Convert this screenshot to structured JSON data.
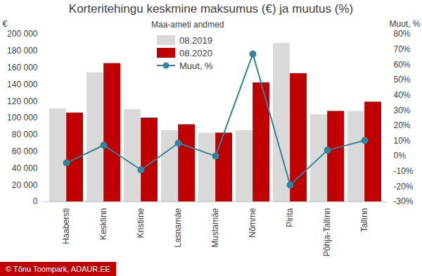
{
  "chart_data": {
    "type": "bar",
    "title": "Korteritehingu keskmine maksumus (€) ja muutus (%)",
    "subtitle": "Maa-ameti andmed",
    "caption": "© Tõnu Toompark, ADAUR.EE",
    "y_label": "€",
    "y2_label": "Muut, %",
    "categories": [
      "Haabersti",
      "Kesklinn",
      "Kristiine",
      "Lasnamäe",
      "Mustamäe",
      "Nõmme",
      "Pirita",
      "Põhja-Tallinn",
      "Tallinn"
    ],
    "series": [
      {
        "name": "08.2019",
        "color": "#d9d9d9",
        "values": [
          111000,
          154000,
          110000,
          85000,
          82000,
          85000,
          189000,
          104000,
          108000
        ]
      },
      {
        "name": "08.2020",
        "color": "#c00000",
        "values": [
          106000,
          165000,
          100000,
          92000,
          82000,
          142000,
          153000,
          108000,
          119000
        ]
      },
      {
        "name": "Muut, %",
        "type": "line",
        "marker": "circle",
        "axis": "y2",
        "color": "#31849b",
        "values": [
          -4.5,
          7.1,
          -9.1,
          8.5,
          0,
          67,
          -19,
          3.8,
          10.2
        ]
      }
    ],
    "ylim": [
      0,
      200000
    ],
    "yticks": [
      {
        "value": 0,
        "label": "0"
      },
      {
        "value": 20000,
        "label": "20 000"
      },
      {
        "value": 40000,
        "label": "40 000"
      },
      {
        "value": 60000,
        "label": "60 000"
      },
      {
        "value": 80000,
        "label": "80 000"
      },
      {
        "value": 100000,
        "label": "100 000"
      },
      {
        "value": 120000,
        "label": "120 000"
      },
      {
        "value": 140000,
        "label": "140 000"
      },
      {
        "value": 160000,
        "label": "160 000"
      },
      {
        "value": 180000,
        "label": "180 000"
      },
      {
        "value": 200000,
        "label": "200 000"
      }
    ],
    "y2lim": [
      -30,
      80
    ],
    "y2ticks": [
      {
        "value": -30,
        "label": "-30%"
      },
      {
        "value": -20,
        "label": "-20%"
      },
      {
        "value": -10,
        "label": "-10%"
      },
      {
        "value": 0,
        "label": "0%"
      },
      {
        "value": 10,
        "label": "10%"
      },
      {
        "value": 20,
        "label": "20%"
      },
      {
        "value": 30,
        "label": "30%"
      },
      {
        "value": 40,
        "label": "40%"
      },
      {
        "value": 50,
        "label": "50%"
      },
      {
        "value": 60,
        "label": "60%"
      },
      {
        "value": 70,
        "label": "70%"
      },
      {
        "value": 80,
        "label": "80%"
      }
    ],
    "legend": "top",
    "grid": false
  }
}
